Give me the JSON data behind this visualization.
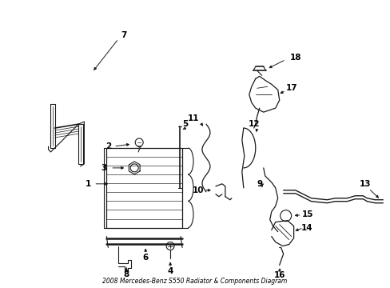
{
  "title": "2008 Mercedes-Benz S550 Radiator & Components Diagram",
  "bg_color": "#ffffff",
  "line_color": "#1a1a1a",
  "text_color": "#000000",
  "fig_width": 4.89,
  "fig_height": 3.6,
  "dpi": 100
}
